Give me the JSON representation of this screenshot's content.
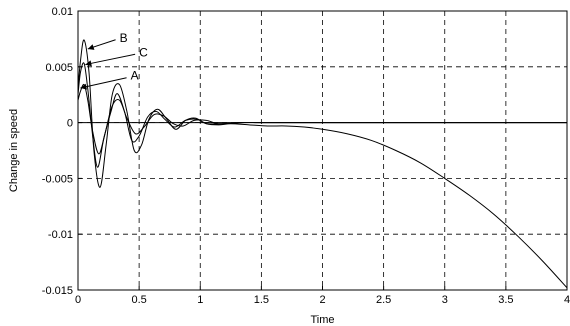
{
  "chart_data": {
    "type": "line",
    "title": "",
    "xlabel": "Time",
    "ylabel": "Change in speed",
    "xlim": [
      0,
      4
    ],
    "ylim": [
      -0.015,
      0.01
    ],
    "x_ticks": [
      0,
      0.5,
      1,
      1.5,
      2,
      2.5,
      3,
      3.5,
      4
    ],
    "x_tick_labels": [
      "0",
      "0.5",
      "1",
      "1.5",
      "2",
      "2.5",
      "3",
      "3.5",
      "4"
    ],
    "y_ticks": [
      -0.015,
      -0.01,
      -0.005,
      0,
      0.005,
      0.01
    ],
    "y_tick_labels": [
      "-0.015",
      "-0.01",
      "-0.005",
      "0",
      "0.005",
      "0.01"
    ],
    "grid": true,
    "series": [
      {
        "name": "A",
        "x": [
          0,
          0.02,
          0.05,
          0.08,
          0.12,
          0.17,
          0.22,
          0.28,
          0.34,
          0.4,
          0.47,
          0.54,
          0.62,
          0.7,
          0.78,
          0.86,
          0.95,
          1.05,
          1.15,
          1.3,
          1.5,
          1.7,
          2.0,
          2.5,
          3.0,
          3.5,
          4.0
        ],
        "y": [
          0.002,
          0.0028,
          0.0034,
          0.002,
          -0.0008,
          -0.0028,
          -0.001,
          0.0015,
          0.002,
          0.0004,
          -0.001,
          -0.0004,
          0.0007,
          0.0006,
          -0.0001,
          -0.0003,
          0.0002,
          0.0002,
          -0.0001,
          0,
          0,
          0,
          0,
          0,
          0,
          0,
          0
        ]
      },
      {
        "name": "B",
        "x": [
          0,
          0.02,
          0.05,
          0.09,
          0.13,
          0.18,
          0.23,
          0.28,
          0.34,
          0.4,
          0.46,
          0.52,
          0.58,
          0.65,
          0.72,
          0.8,
          0.88,
          0.96,
          1.05,
          1.15,
          1.25,
          1.4,
          1.55,
          1.7,
          1.85,
          2.0,
          2.2,
          2.4,
          2.6,
          2.8,
          3.0,
          3.2,
          3.4,
          3.6,
          3.8,
          4.0
        ],
        "y": [
          0.003,
          0.0055,
          0.0074,
          0.0045,
          -0.0025,
          -0.0058,
          -0.002,
          0.0025,
          0.0034,
          0.001,
          -0.0025,
          -0.002,
          0.0003,
          0.0012,
          0.0004,
          -0.0006,
          0.0002,
          0.0004,
          -0.0001,
          -0.0002,
          -0.0001,
          -0.0002,
          -0.0003,
          -0.0003,
          -0.0004,
          -0.0006,
          -0.001,
          -0.0016,
          -0.0025,
          -0.0036,
          -0.005,
          -0.0065,
          -0.0082,
          -0.0102,
          -0.0124,
          -0.0148
        ]
      },
      {
        "name": "C",
        "x": [
          0,
          0.02,
          0.05,
          0.08,
          0.12,
          0.16,
          0.21,
          0.27,
          0.32,
          0.38,
          0.44,
          0.5,
          0.57,
          0.64,
          0.71,
          0.79,
          0.88,
          0.97,
          1.06,
          1.2,
          1.35,
          1.5,
          1.7,
          2.0,
          2.5,
          3.0,
          3.5,
          4.0
        ],
        "y": [
          0.0025,
          0.0045,
          0.0053,
          0.003,
          -0.0012,
          -0.004,
          -0.0015,
          0.001,
          0.0026,
          0.001,
          -0.0016,
          -0.0012,
          0.0005,
          0.001,
          0.0003,
          -0.0004,
          0.0002,
          0.0003,
          -0.0001,
          -0.0001,
          0,
          0,
          0,
          0,
          0,
          0,
          0,
          0
        ]
      }
    ],
    "annotations": [
      {
        "text": "A",
        "point_x": 0.02,
        "point_y": 0.0031,
        "label_x": 0.43,
        "label_y": 0.0042
      },
      {
        "text": "B",
        "point_x": 0.08,
        "point_y": 0.0066,
        "label_x": 0.34,
        "label_y": 0.0076
      },
      {
        "text": "C",
        "point_x": 0.06,
        "point_y": 0.0052,
        "label_x": 0.5,
        "label_y": 0.0063
      }
    ]
  }
}
